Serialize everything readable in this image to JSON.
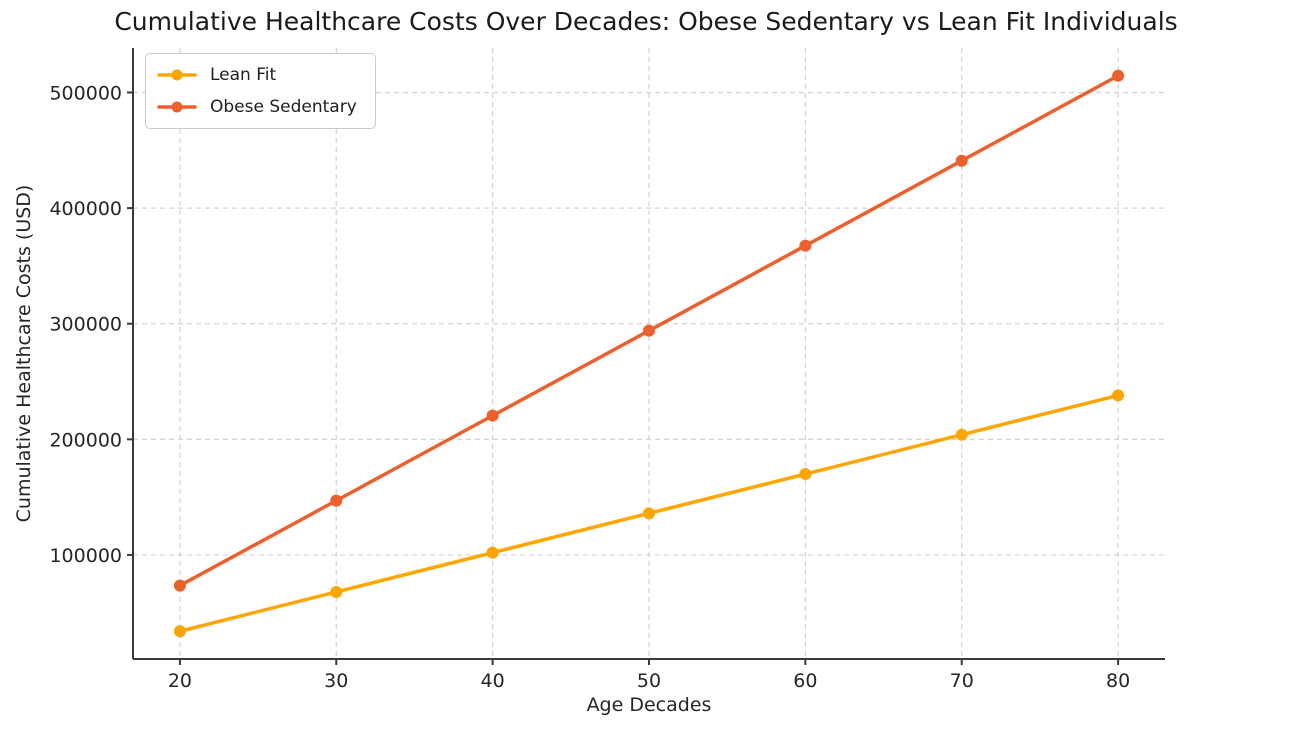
{
  "chart_data": {
    "type": "line",
    "title": "Cumulative Healthcare Costs Over Decades: Obese Sedentary vs Lean Fit Individuals",
    "xlabel": "Age Decades",
    "ylabel": "Cumulative Healthcare Costs (USD)",
    "x": [
      20,
      30,
      40,
      50,
      60,
      70,
      80
    ],
    "series": [
      {
        "name": "Lean Fit",
        "color": "#FFA500",
        "values": [
          34000,
          68000,
          102000,
          136000,
          170000,
          204000,
          238000
        ]
      },
      {
        "name": "Obese Sedentary",
        "color": "#EE5F2B",
        "values": [
          73500,
          147000,
          220500,
          294000,
          367500,
          441000,
          514500
        ]
      }
    ],
    "xlim": [
      17,
      83
    ],
    "ylim": [
      10000,
      538500
    ],
    "xticks": [
      20,
      30,
      40,
      50,
      60,
      70,
      80
    ],
    "yticks": [
      100000,
      200000,
      300000,
      400000,
      500000
    ],
    "xtick_labels": [
      "20",
      "30",
      "40",
      "50",
      "60",
      "70",
      "80"
    ],
    "ytick_labels": [
      "100000",
      "200000",
      "300000",
      "400000",
      "500000"
    ],
    "grid": true,
    "grid_style": "dashed",
    "legend_position": "upper-left",
    "legend_entries": [
      "Lean Fit",
      "Obese Sedentary"
    ],
    "axis_color": "#3a3a3a",
    "grid_color": "#d3d3d3",
    "text_color": "#262626",
    "marker": "circle",
    "line_width": 3.5,
    "marker_radius": 6
  }
}
